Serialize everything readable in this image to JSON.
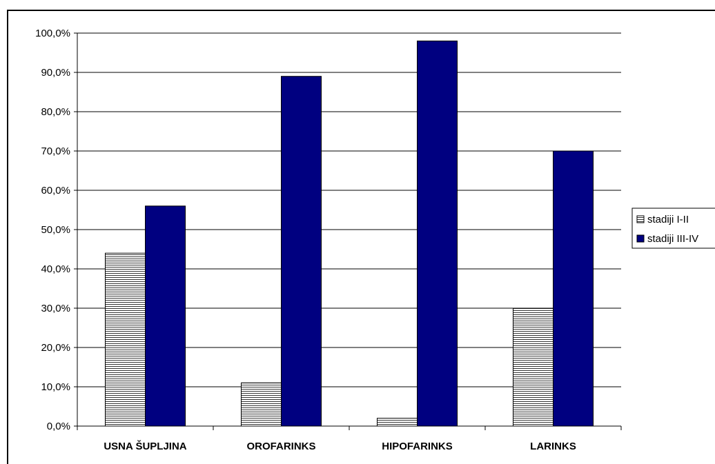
{
  "chart_data": {
    "type": "bar",
    "categories": [
      "USNA ŠUPLJINA",
      "OROFARINKS",
      "HIPOFARINKS",
      "LARINKS"
    ],
    "series": [
      {
        "name": "stadiji I-II",
        "values": [
          44.0,
          11.0,
          2.0,
          30.0
        ],
        "color": "#ffffff",
        "pattern": "horizontal-lines"
      },
      {
        "name": "stadiji III-IV",
        "values": [
          56.0,
          89.0,
          98.0,
          70.0
        ],
        "color": "#000080"
      }
    ],
    "ylim": [
      0,
      100
    ],
    "yticks": [
      "0,0%",
      "10,0%",
      "20,0%",
      "30,0%",
      "40,0%",
      "50,0%",
      "60,0%",
      "70,0%",
      "80,0%",
      "90,0%",
      "100,0%"
    ],
    "grid": true,
    "legend_position": "right",
    "title": "",
    "xlabel": "",
    "ylabel": ""
  }
}
